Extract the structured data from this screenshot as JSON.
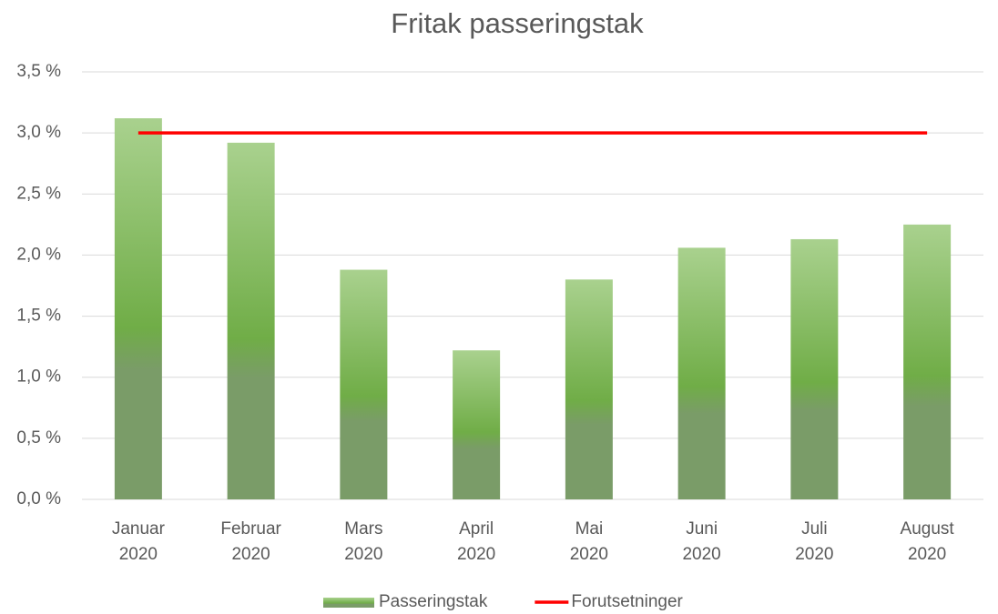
{
  "chart_data": {
    "type": "bar",
    "title": "Fritak passeringstak",
    "categories": [
      "Januar 2020",
      "Februar 2020",
      "Mars 2020",
      "April 2020",
      "Mai 2020",
      "Juni 2020",
      "Juli 2020",
      "August 2020"
    ],
    "series": [
      {
        "name": "Passeringstak",
        "type": "bar",
        "color": "#70ad47",
        "values": [
          3.12,
          2.92,
          1.88,
          1.22,
          1.8,
          2.06,
          2.13,
          2.25
        ]
      },
      {
        "name": "Forutsetninger",
        "type": "line",
        "color": "#ff0000",
        "values": [
          3.0,
          3.0,
          3.0,
          3.0,
          3.0,
          3.0,
          3.0,
          3.0
        ]
      }
    ],
    "ylim": [
      0,
      3.5
    ],
    "yticks": [
      {
        "value": 0,
        "label": "0,0 %"
      },
      {
        "value": 0.5,
        "label": "0,5 %"
      },
      {
        "value": 1,
        "label": "1,0 %"
      },
      {
        "value": 1.5,
        "label": "1,5 %"
      },
      {
        "value": 2,
        "label": "2,0 %"
      },
      {
        "value": 2.5,
        "label": "2,5 %"
      },
      {
        "value": 3,
        "label": "3,0 %"
      },
      {
        "value": 3.5,
        "label": "3,5 %"
      }
    ],
    "grid": true,
    "legend": "bottom"
  }
}
